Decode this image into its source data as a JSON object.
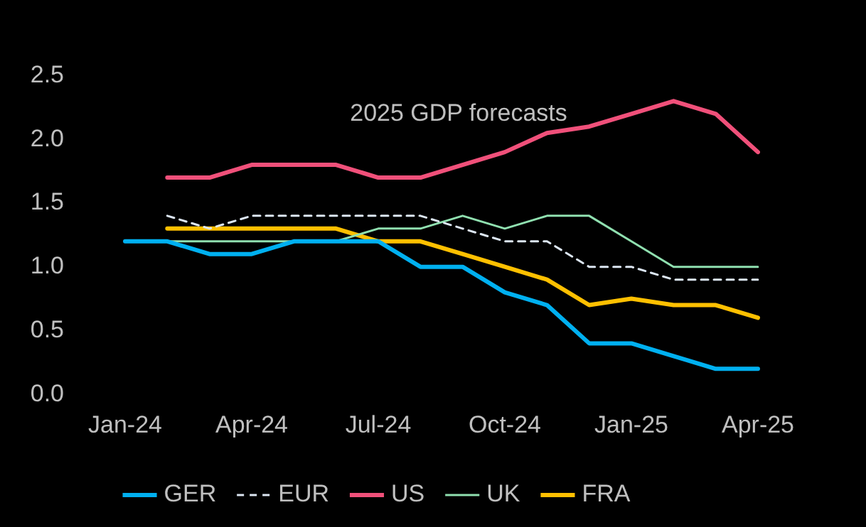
{
  "chart_data": {
    "type": "line",
    "title": "2025 GDP forecasts",
    "categories": [
      "Jan-24",
      null,
      null,
      "Apr-24",
      null,
      null,
      "Jul-24",
      null,
      null,
      "Oct-24",
      null,
      null,
      "Jan-25",
      null,
      null,
      "Apr-25"
    ],
    "series": [
      {
        "name": "GER",
        "color": "#00b0f0",
        "values": [
          1.2,
          1.2,
          1.1,
          1.1,
          1.2,
          1.2,
          1.2,
          1.0,
          1.0,
          0.8,
          0.7,
          0.4,
          0.4,
          0.3,
          0.2,
          0.2
        ]
      },
      {
        "name": "EUR",
        "color": "#dce6f2",
        "line_style": "dashed",
        "values": [
          null,
          1.4,
          1.3,
          1.4,
          1.4,
          1.4,
          1.4,
          1.4,
          1.3,
          1.2,
          1.2,
          1.0,
          1.0,
          0.9,
          0.9,
          0.9
        ]
      },
      {
        "name": "US",
        "color": "#f0507a",
        "values": [
          null,
          1.7,
          1.7,
          1.8,
          1.8,
          1.8,
          1.7,
          1.7,
          1.8,
          1.9,
          2.05,
          2.1,
          2.2,
          2.3,
          2.2,
          1.9
        ]
      },
      {
        "name": "UK",
        "color": "#90e0b0",
        "values": [
          null,
          1.2,
          1.2,
          1.2,
          1.2,
          1.2,
          1.3,
          1.3,
          1.4,
          1.3,
          1.4,
          1.4,
          1.2,
          1.0,
          1.0,
          1.0
        ]
      },
      {
        "name": "FRA",
        "color": "#ffc000",
        "values": [
          null,
          1.3,
          1.3,
          1.3,
          1.3,
          1.3,
          1.2,
          1.2,
          1.1,
          1.0,
          0.9,
          0.7,
          0.75,
          0.7,
          0.7,
          0.6
        ]
      }
    ],
    "ylim": [
      0,
      2.5
    ],
    "yticks": [
      {
        "value": 0,
        "label": "0.0"
      },
      {
        "value": 0.5,
        "label": "0.5"
      },
      {
        "value": 1,
        "label": "1.0"
      },
      {
        "value": 1.5,
        "label": "1.5"
      },
      {
        "value": 2,
        "label": "2.0"
      },
      {
        "value": 2.5,
        "label": "2.5"
      }
    ],
    "grid": false,
    "legend": "bottom",
    "marker": "none",
    "line_style": "solid"
  }
}
